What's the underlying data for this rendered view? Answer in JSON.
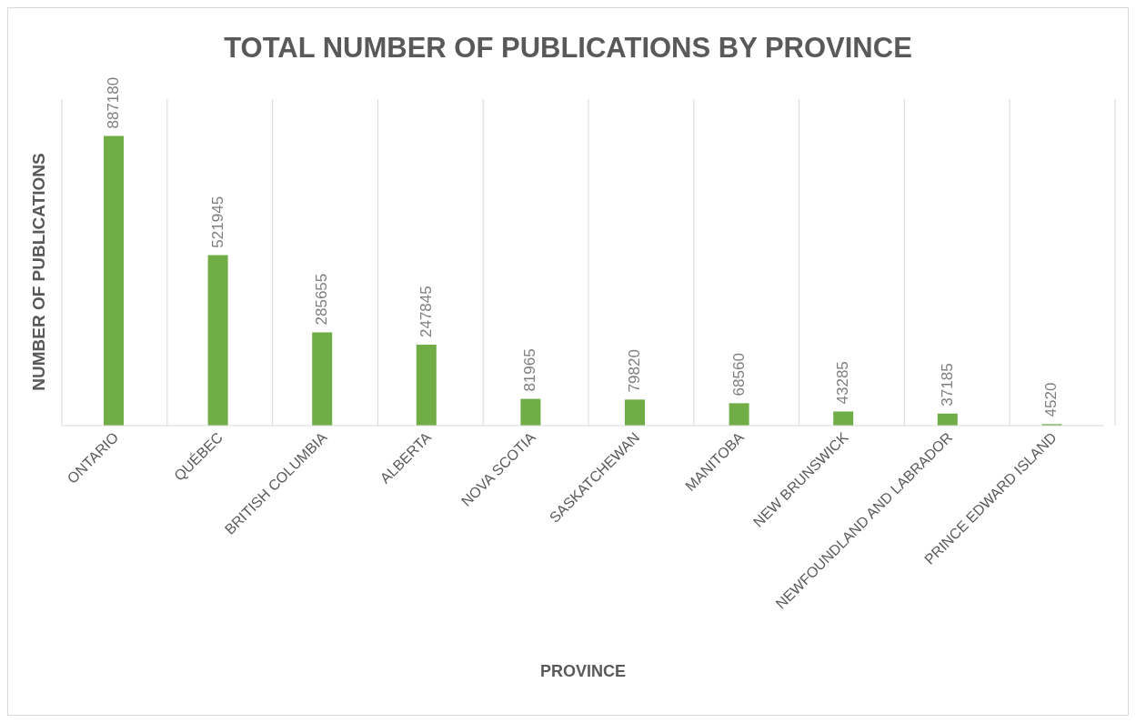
{
  "chart_data": {
    "type": "bar",
    "title": "TOTAL NUMBER OF PUBLICATIONS BY PROVINCE",
    "xlabel": "PROVINCE",
    "ylabel": "NUMBER OF PUBLICATIONS",
    "categories": [
      "ONTARIO",
      "QUÉBEC",
      "BRITISH COLUMBIA",
      "ALBERTA",
      "NOVA SCOTIA",
      "SASKATCHEWAN",
      "MANITOBA",
      "NEW BRUNSWICK",
      "NEWFOUNDLAND AND LABRADOR",
      "PRINCE EDWARD ISLAND"
    ],
    "values": [
      887180,
      521945,
      285655,
      247845,
      81965,
      79820,
      68560,
      43285,
      37185,
      4520
    ],
    "color": "#70ad47",
    "ylim": [
      0,
      1000000
    ],
    "grid": "x",
    "data_labels": true,
    "tick_labels": "x"
  }
}
